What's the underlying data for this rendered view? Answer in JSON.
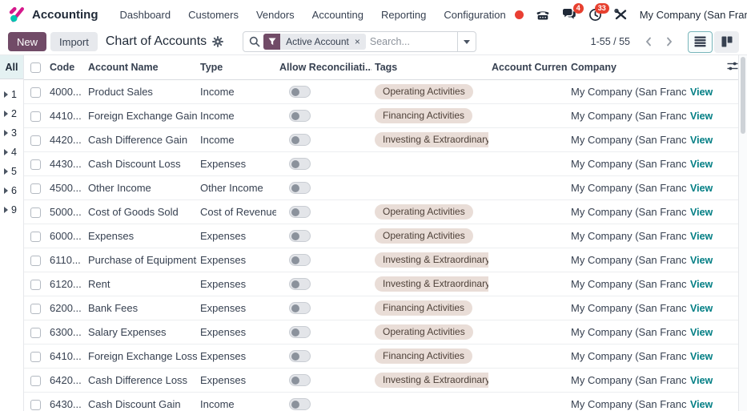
{
  "navbar": {
    "app_name": "Accounting",
    "menu": [
      "Dashboard",
      "Customers",
      "Vendors",
      "Accounting",
      "Reporting",
      "Configuration"
    ],
    "messages_badge": "4",
    "activities_badge": "33",
    "company": "My Company (San Francisco)"
  },
  "control_panel": {
    "new_label": "New",
    "import_label": "Import",
    "title": "Chart of Accounts",
    "search": {
      "facet_label": "Active Account",
      "facet_remove": "×",
      "placeholder": "Search..."
    },
    "pager_range": "1-55 / 55"
  },
  "group_panel": {
    "all_label": "All",
    "groups": [
      "1",
      "2",
      "3",
      "4",
      "5",
      "6",
      "9"
    ]
  },
  "table": {
    "headers": {
      "code": "Code",
      "name": "Account Name",
      "type": "Type",
      "reconcile": "Allow Reconciliati...",
      "tags": "Tags",
      "currency": "Account Curren...",
      "company": "Company"
    },
    "company_display": "My Company (San Franci...",
    "view_label": "View",
    "rows": [
      {
        "code": "4000...",
        "name": "Product Sales",
        "type": "Income",
        "tag": "Operating Activities"
      },
      {
        "code": "4410...",
        "name": "Foreign Exchange Gain",
        "type": "Income",
        "tag": "Financing Activities"
      },
      {
        "code": "4420...",
        "name": "Cash Difference Gain",
        "type": "Income",
        "tag": "Investing & Extraordinary Activities"
      },
      {
        "code": "4430...",
        "name": "Cash Discount Loss",
        "type": "Expenses",
        "tag": ""
      },
      {
        "code": "4500...",
        "name": "Other Income",
        "type": "Other Income",
        "tag": ""
      },
      {
        "code": "5000...",
        "name": "Cost of Goods Sold",
        "type": "Cost of Revenue",
        "tag": "Operating Activities"
      },
      {
        "code": "6000...",
        "name": "Expenses",
        "type": "Expenses",
        "tag": "Operating Activities"
      },
      {
        "code": "6110...",
        "name": "Purchase of Equipments",
        "type": "Expenses",
        "tag": "Investing & Extraordinary Activities"
      },
      {
        "code": "6120...",
        "name": "Rent",
        "type": "Expenses",
        "tag": "Investing & Extraordinary Activities"
      },
      {
        "code": "6200...",
        "name": "Bank Fees",
        "type": "Expenses",
        "tag": "Financing Activities"
      },
      {
        "code": "6300...",
        "name": "Salary Expenses",
        "type": "Expenses",
        "tag": "Operating Activities"
      },
      {
        "code": "6410...",
        "name": "Foreign Exchange Loss",
        "type": "Expenses",
        "tag": "Financing Activities"
      },
      {
        "code": "6420...",
        "name": "Cash Difference Loss",
        "type": "Expenses",
        "tag": "Investing & Extraordinary Activities"
      },
      {
        "code": "6430...",
        "name": "Cash Discount Gain",
        "type": "Income",
        "tag": ""
      }
    ]
  },
  "colors": {
    "brand_purple": "#714B67",
    "accent_teal": "#017E84",
    "badge_red": "#e7402f",
    "tag_background": "#e9ddd7",
    "all_cell_background": "#e4f1f2"
  }
}
